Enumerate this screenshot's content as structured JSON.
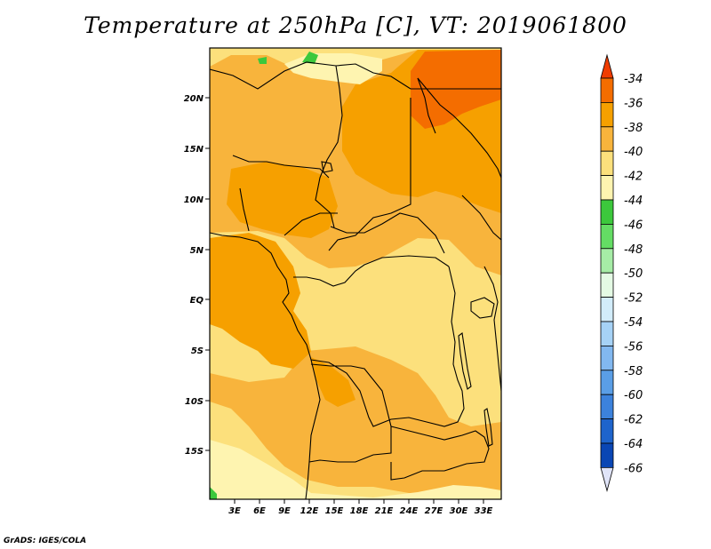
{
  "title": "Temperature at 250hPa [C], VT: 2019061800",
  "credit": "GrADS: IGES/COLA",
  "map": {
    "lon_ticks": [
      "3E",
      "6E",
      "9E",
      "12E",
      "15E",
      "18E",
      "21E",
      "24E",
      "27E",
      "30E",
      "33E"
    ],
    "lat_ticks": [
      "20N",
      "15N",
      "10N",
      "5N",
      "EQ",
      "5S",
      "10S",
      "15S"
    ],
    "colors": {
      "c36_34": "#f46d00",
      "c38_36": "#f6a000",
      "c40_38": "#f8b43c",
      "c42_40": "#fce07c",
      "c44_42": "#fef4b0",
      "c46_44": "#3cc83c",
      "coast": "#000000"
    }
  },
  "colorbar": {
    "labels": [
      "-34",
      "-36",
      "-38",
      "-40",
      "-42",
      "-44",
      "-46",
      "-48",
      "-50",
      "-52",
      "-54",
      "-56",
      "-58",
      "-60",
      "-62",
      "-64",
      "-66"
    ],
    "top_color": "#f03c00",
    "bottom_color": "#e0e4f8",
    "colors": [
      "#f46d00",
      "#f6a000",
      "#f8b43c",
      "#fce07c",
      "#fef4b0",
      "#3cc83c",
      "#64dc64",
      "#a6eca6",
      "#e4fae4",
      "#d2ecfa",
      "#a6d2f6",
      "#82b8f0",
      "#5a9ee6",
      "#3c82dc",
      "#1e64cc",
      "#0a46b4",
      "#001e78"
    ]
  }
}
